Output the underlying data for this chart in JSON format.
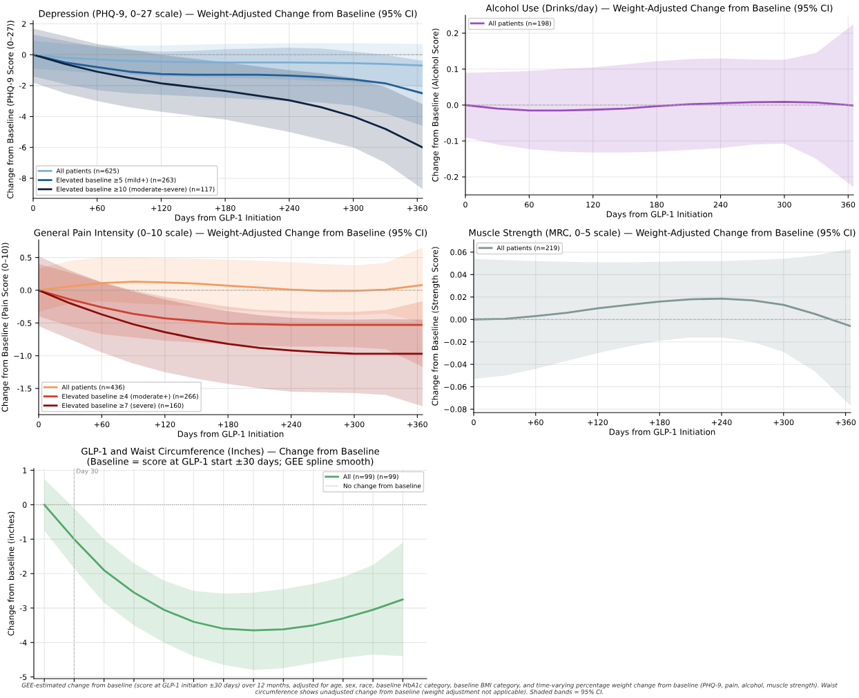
{
  "chart_data": [
    {
      "type": "line",
      "title": "Depression (PHQ-9, 0–27 scale) — Weight-Adjusted Change from Baseline (95% CI)",
      "xlabel": "Days from GLP-1 Initiation",
      "ylabel": "Change from Baseline (PHQ-9 Score (0–27))",
      "x": [
        0,
        30,
        60,
        90,
        120,
        150,
        180,
        210,
        240,
        270,
        300,
        330,
        365
      ],
      "series": [
        {
          "name": "All patients (n=625)",
          "color": "#7bafd4",
          "values": [
            0,
            -0.2,
            -0.3,
            -0.4,
            -0.45,
            -0.48,
            -0.5,
            -0.5,
            -0.5,
            -0.52,
            -0.55,
            -0.6,
            -0.7
          ],
          "upper": [
            0.9,
            0.7,
            0.6,
            0.6,
            0.6,
            0.65,
            0.7,
            0.72,
            0.75,
            0.75,
            0.75,
            0.72,
            0.7
          ],
          "lower": [
            -0.9,
            -1.05,
            -1.2,
            -1.3,
            -1.4,
            -1.45,
            -1.5,
            -1.55,
            -1.6,
            -1.7,
            -1.8,
            -1.95,
            -2.1
          ]
        },
        {
          "name": "Elevated baseline ≥5 (mild+) (n=263)",
          "color": "#1f5f99",
          "values": [
            0,
            -0.5,
            -0.8,
            -1.1,
            -1.25,
            -1.3,
            -1.3,
            -1.3,
            -1.35,
            -1.45,
            -1.6,
            -1.85,
            -2.5
          ],
          "upper": [
            1.3,
            0.9,
            0.5,
            0.3,
            0.2,
            0.25,
            0.35,
            0.4,
            0.45,
            0.4,
            0.2,
            0.0,
            -0.4
          ],
          "lower": [
            -1.4,
            -1.9,
            -2.3,
            -2.5,
            -2.6,
            -2.7,
            -2.8,
            -2.9,
            -3.0,
            -3.1,
            -3.3,
            -3.8,
            -4.6
          ]
        },
        {
          "name": "Elevated baseline ≥10 (moderate-severe) (n=117)",
          "color": "#0d2240",
          "values": [
            0,
            -0.6,
            -1.1,
            -1.5,
            -1.85,
            -2.1,
            -2.35,
            -2.65,
            -2.95,
            -3.4,
            -4.0,
            -4.8,
            -6.0
          ],
          "upper": [
            1.7,
            1.2,
            0.7,
            0.35,
            0.0,
            -0.25,
            -0.5,
            -0.75,
            -1.0,
            -1.2,
            -1.5,
            -2.1,
            -3.2
          ],
          "lower": [
            -1.8,
            -2.5,
            -3.0,
            -3.4,
            -3.7,
            -3.95,
            -4.2,
            -4.6,
            -5.0,
            -5.5,
            -6.0,
            -7.0,
            -8.7
          ]
        }
      ],
      "xlim": [
        0,
        365
      ],
      "ylim": [
        -9.3,
        2.2
      ],
      "xticks": [
        0,
        {
          "value": 60,
          "label": "+60"
        },
        {
          "value": 120,
          "label": "+120"
        },
        {
          "value": 180,
          "label": "+180"
        },
        {
          "value": 240,
          "label": "+240"
        },
        {
          "value": 300,
          "label": "+300"
        },
        {
          "value": 360,
          "label": "+360"
        }
      ],
      "yticks": [
        -8,
        -6,
        -4,
        -2,
        0,
        2
      ],
      "grid": true,
      "legend": "bottom left",
      "ref_lines": [
        {
          "axis": "y",
          "value": 0,
          "color": "#aaaaaa",
          "line_style": "dashed"
        }
      ]
    },
    {
      "type": "line",
      "title": "Alcohol Use (Drinks/day) — Weight-Adjusted Change from Baseline (95% CI)",
      "xlabel": "Days from GLP-1 Initiation",
      "ylabel": "Change from Baseline (Alcohol Score)",
      "x": [
        0,
        30,
        60,
        90,
        120,
        150,
        180,
        210,
        240,
        270,
        300,
        330,
        365
      ],
      "series": [
        {
          "name": "All patients (n=198)",
          "color": "#9b4dbf",
          "values": [
            0,
            -0.01,
            -0.015,
            -0.015,
            -0.013,
            -0.01,
            -0.003,
            0.002,
            0.005,
            0.008,
            0.009,
            0.007,
            -0.001
          ],
          "upper": [
            0.09,
            0.092,
            0.095,
            0.1,
            0.105,
            0.113,
            0.122,
            0.128,
            0.13,
            0.127,
            0.126,
            0.145,
            0.225
          ],
          "lower": [
            -0.09,
            -0.11,
            -0.123,
            -0.13,
            -0.132,
            -0.132,
            -0.13,
            -0.125,
            -0.12,
            -0.11,
            -0.107,
            -0.15,
            -0.228
          ]
        }
      ],
      "xlim": [
        0,
        365
      ],
      "ylim": [
        -0.25,
        0.25
      ],
      "xticks": [
        0,
        60,
        120,
        180,
        240,
        300,
        360
      ],
      "yticks": [
        -0.2,
        -0.1,
        {
          "value": 0,
          "label": "0.0"
        },
        0.1,
        0.2
      ],
      "grid": true,
      "legend": "top left",
      "ref_lines": [
        {
          "axis": "y",
          "value": 0,
          "color": "#aaaaaa",
          "line_style": "dashed"
        }
      ]
    },
    {
      "type": "line",
      "title": "General Pain Intensity (0–10 scale) — Weight-Adjusted Change from Baseline (95% CI)",
      "xlabel": "Days from GLP-1 Initiation",
      "ylabel": "Change from Baseline (Pain Score (0–10))",
      "x": [
        0,
        30,
        60,
        90,
        120,
        150,
        180,
        210,
        240,
        270,
        300,
        330,
        365
      ],
      "series": [
        {
          "name": "All patients (n=436)",
          "color": "#f29b5e",
          "values": [
            0,
            0.06,
            0.11,
            0.13,
            0.12,
            0.1,
            0.07,
            0.04,
            0.01,
            -0.01,
            -0.01,
            0.01,
            0.08
          ],
          "upper": [
            0.33,
            0.45,
            0.5,
            0.5,
            0.49,
            0.48,
            0.47,
            0.45,
            0.43,
            0.4,
            0.38,
            0.42,
            0.65
          ],
          "lower": [
            -0.33,
            -0.2,
            -0.17,
            -0.2,
            -0.22,
            -0.25,
            -0.3,
            -0.33,
            -0.36,
            -0.38,
            -0.38,
            -0.36,
            -0.5
          ]
        },
        {
          "name": "Elevated baseline ≥4 (moderate+) (n=266)",
          "color": "#d0402f",
          "values": [
            0,
            -0.14,
            -0.26,
            -0.36,
            -0.43,
            -0.47,
            -0.51,
            -0.52,
            -0.53,
            -0.53,
            -0.53,
            -0.53,
            -0.53
          ],
          "upper": [
            0.4,
            0.27,
            0.12,
            0.0,
            -0.1,
            -0.18,
            -0.25,
            -0.3,
            -0.32,
            -0.33,
            -0.33,
            -0.3,
            -0.17
          ],
          "lower": [
            -0.4,
            -0.55,
            -0.67,
            -0.72,
            -0.77,
            -0.8,
            -0.83,
            -0.85,
            -0.86,
            -0.86,
            -0.87,
            -0.9,
            -1.17
          ]
        },
        {
          "name": "Elevated baseline ≥7 (severe) (n=160)",
          "color": "#8b0a0a",
          "values": [
            0,
            -0.2,
            -0.37,
            -0.52,
            -0.64,
            -0.74,
            -0.82,
            -0.88,
            -0.92,
            -0.95,
            -0.97,
            -0.97,
            -0.97
          ],
          "upper": [
            0.52,
            0.3,
            0.12,
            -0.02,
            -0.14,
            -0.24,
            -0.32,
            -0.38,
            -0.42,
            -0.44,
            -0.45,
            -0.44,
            -0.45
          ],
          "lower": [
            -0.55,
            -0.75,
            -0.95,
            -1.12,
            -1.25,
            -1.35,
            -1.43,
            -1.5,
            -1.55,
            -1.56,
            -1.57,
            -1.6,
            -1.77
          ]
        }
      ],
      "xlim": [
        0,
        365
      ],
      "ylim": [
        -1.9,
        0.77
      ],
      "xticks": [
        0,
        {
          "value": 60,
          "label": "+60"
        },
        {
          "value": 120,
          "label": "+120"
        },
        {
          "value": 180,
          "label": "+180"
        },
        {
          "value": 240,
          "label": "+240"
        },
        {
          "value": 300,
          "label": "+300"
        },
        {
          "value": 360,
          "label": "+360"
        }
      ],
      "yticks": [
        -1.5,
        {
          "value": -1,
          "label": "−1.0"
        },
        -0.5,
        {
          "value": 0,
          "label": "0.0"
        },
        0.5
      ],
      "grid": true,
      "legend": "bottom left",
      "ref_lines": [
        {
          "axis": "y",
          "value": 0,
          "color": "#aaaaaa",
          "line_style": "dashed"
        }
      ]
    },
    {
      "type": "line",
      "title": "Muscle Strength (MRC, 0–5 scale) — Weight-Adjusted Change from Baseline (95% CI)",
      "xlabel": "Days from GLP-1 Initiation",
      "ylabel": "Change from Baseline (Strength Score)",
      "x": [
        0,
        30,
        60,
        90,
        120,
        150,
        180,
        210,
        240,
        270,
        300,
        330,
        365
      ],
      "series": [
        {
          "name": "All patients (n=219)",
          "color": "#7f9696",
          "values": [
            0,
            0.0005,
            0.003,
            0.006,
            0.01,
            0.013,
            0.016,
            0.018,
            0.0185,
            0.017,
            0.013,
            0.005,
            -0.006
          ],
          "upper": [
            0.054,
            0.053,
            0.052,
            0.0515,
            0.051,
            0.051,
            0.0515,
            0.052,
            0.052,
            0.053,
            0.054,
            0.057,
            0.063
          ],
          "lower": [
            -0.053,
            -0.05,
            -0.044,
            -0.037,
            -0.03,
            -0.024,
            -0.019,
            -0.016,
            -0.016,
            -0.02,
            -0.029,
            -0.046,
            -0.077
          ]
        }
      ],
      "xlim": [
        0,
        365
      ],
      "ylim": [
        -0.083,
        0.071
      ],
      "xticks": [
        0,
        {
          "value": 60,
          "label": "+60"
        },
        {
          "value": 120,
          "label": "+120"
        },
        {
          "value": 180,
          "label": "+180"
        },
        {
          "value": 240,
          "label": "+240"
        },
        {
          "value": 300,
          "label": "+300"
        },
        {
          "value": 360,
          "label": "+360"
        }
      ],
      "yticks": [
        {
          "value": -0.08,
          "label": "−0.08"
        },
        {
          "value": -0.06,
          "label": "−0.06"
        },
        {
          "value": -0.04,
          "label": "−0.04"
        },
        {
          "value": -0.02,
          "label": "−0.02"
        },
        {
          "value": 0,
          "label": "0.00"
        },
        {
          "value": 0.02,
          "label": "0.02"
        },
        {
          "value": 0.04,
          "label": "0.04"
        },
        {
          "value": 0.06,
          "label": "0.06"
        }
      ],
      "grid": true,
      "legend": "top left",
      "ref_lines": [
        {
          "axis": "y",
          "value": 0,
          "color": "#aaaaaa",
          "line_style": "dashed"
        }
      ]
    },
    {
      "type": "line",
      "title": "GLP-1 and Waist Circumference (Inches) — Change from Baseline",
      "subtitle": "(Baseline = score at GLP-1 start ±30 days; GEE spline smooth)",
      "ylabel": "Change from baseline (inches)",
      "categories": [
        null,
        null,
        null,
        null,
        null,
        null,
        null,
        null,
        null,
        null,
        null,
        null,
        null
      ],
      "series": [
        {
          "name": "All (n=99) (n=99)",
          "color": "#52a86a",
          "values": [
            0,
            -1.0,
            -1.9,
            -2.55,
            -3.05,
            -3.4,
            -3.6,
            -3.65,
            -3.62,
            -3.5,
            -3.3,
            -3.05,
            -2.75
          ],
          "upper": [
            0.75,
            -0.1,
            -1.0,
            -1.7,
            -2.2,
            -2.5,
            -2.58,
            -2.55,
            -2.45,
            -2.3,
            -2.1,
            -1.75,
            -1.1
          ],
          "lower": [
            -0.75,
            -1.85,
            -2.85,
            -3.5,
            -4.0,
            -4.4,
            -4.65,
            -4.8,
            -4.75,
            -4.6,
            -4.45,
            -4.35,
            -4.4
          ]
        }
      ],
      "ylim": [
        -5.05,
        1.05
      ],
      "yticks": [
        -5,
        -4,
        -3,
        -2,
        -1,
        0,
        1
      ],
      "tick_labels": "y",
      "grid": true,
      "legend": "top right",
      "ref_lines": [
        {
          "axis": "y",
          "value": 0,
          "color": "#999999",
          "line_style": "dotted",
          "label": "No change from baseline"
        }
      ],
      "annotations": [
        "Day 30",
        "GEE-estimated change from baseline (score at GLP-1 initiation ±30 days) over 12 months, adjusted for age, sex, race, baseline HbA1c category, baseline BMI category, and time-varying percentage weight change from baseline (PHQ-9, pain, alcohol, muscle strength). Waist circumference shows unadjusted change from baseline (weight adjustment not applicable). Shaded bands = 95% CI."
      ]
    }
  ]
}
